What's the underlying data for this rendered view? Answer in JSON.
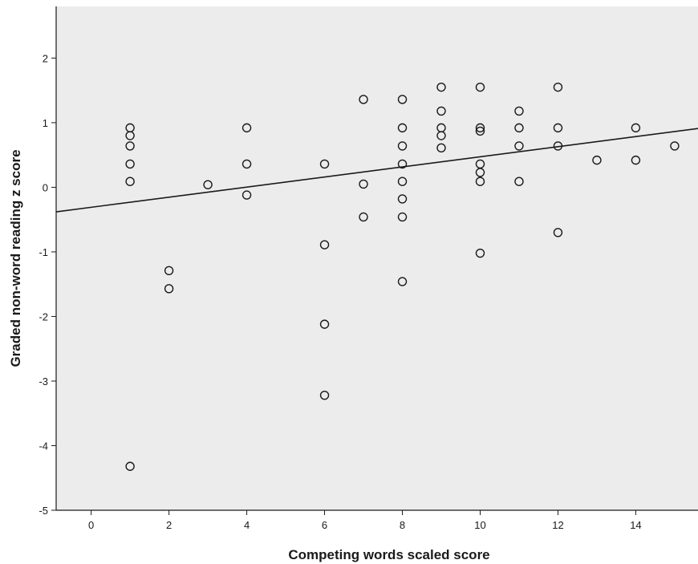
{
  "chart_data": {
    "type": "scatter",
    "title": "",
    "xlabel": "Competing words scaled score",
    "ylabel": "Graded non-word reading z score",
    "xlim": [
      -0.9,
      15.6
    ],
    "ylim": [
      -5,
      2.8
    ],
    "xticks": [
      0,
      2,
      4,
      6,
      8,
      10,
      12,
      14
    ],
    "yticks": [
      -5,
      -4,
      -3,
      -2,
      -1,
      0,
      1,
      2
    ],
    "grid": false,
    "legend": "none",
    "colors": {
      "plot_background": "#ececec",
      "marker": "#1a1a1a",
      "fit_line": "#1a1a1a"
    },
    "points": [
      {
        "x": 1,
        "y": 0.92
      },
      {
        "x": 1,
        "y": 0.8
      },
      {
        "x": 1,
        "y": 0.64
      },
      {
        "x": 1,
        "y": 0.36
      },
      {
        "x": 1,
        "y": 0.09
      },
      {
        "x": 1,
        "y": -4.32
      },
      {
        "x": 2,
        "y": -1.29
      },
      {
        "x": 2,
        "y": -1.57
      },
      {
        "x": 3,
        "y": 0.04
      },
      {
        "x": 4,
        "y": 0.92
      },
      {
        "x": 4,
        "y": 0.36
      },
      {
        "x": 4,
        "y": -0.12
      },
      {
        "x": 6,
        "y": 0.36
      },
      {
        "x": 6,
        "y": -0.89
      },
      {
        "x": 6,
        "y": -2.12
      },
      {
        "x": 6,
        "y": -3.22
      },
      {
        "x": 7,
        "y": 1.36
      },
      {
        "x": 7,
        "y": 0.05
      },
      {
        "x": 7,
        "y": -0.46
      },
      {
        "x": 8,
        "y": 1.36
      },
      {
        "x": 8,
        "y": 0.92
      },
      {
        "x": 8,
        "y": 0.64
      },
      {
        "x": 8,
        "y": 0.36
      },
      {
        "x": 8,
        "y": 0.09
      },
      {
        "x": 8,
        "y": -0.18
      },
      {
        "x": 8,
        "y": -0.46
      },
      {
        "x": 8,
        "y": -1.46
      },
      {
        "x": 9,
        "y": 1.55
      },
      {
        "x": 9,
        "y": 1.18
      },
      {
        "x": 9,
        "y": 0.92
      },
      {
        "x": 9,
        "y": 0.8
      },
      {
        "x": 9,
        "y": 0.61
      },
      {
        "x": 10,
        "y": 1.55
      },
      {
        "x": 10,
        "y": 0.92
      },
      {
        "x": 10,
        "y": 0.87
      },
      {
        "x": 10,
        "y": 0.36
      },
      {
        "x": 10,
        "y": 0.23
      },
      {
        "x": 10,
        "y": 0.09
      },
      {
        "x": 10,
        "y": -1.02
      },
      {
        "x": 11,
        "y": 1.18
      },
      {
        "x": 11,
        "y": 0.92
      },
      {
        "x": 11,
        "y": 0.64
      },
      {
        "x": 11,
        "y": 0.09
      },
      {
        "x": 12,
        "y": 1.55
      },
      {
        "x": 12,
        "y": 0.92
      },
      {
        "x": 12,
        "y": 0.64
      },
      {
        "x": 12,
        "y": -0.7
      },
      {
        "x": 13,
        "y": 0.42
      },
      {
        "x": 14,
        "y": 0.92
      },
      {
        "x": 14,
        "y": 0.42
      },
      {
        "x": 15,
        "y": 0.64
      }
    ],
    "fit_line": {
      "x": [
        -0.9,
        15.6
      ],
      "y": [
        -0.38,
        0.91
      ]
    }
  }
}
